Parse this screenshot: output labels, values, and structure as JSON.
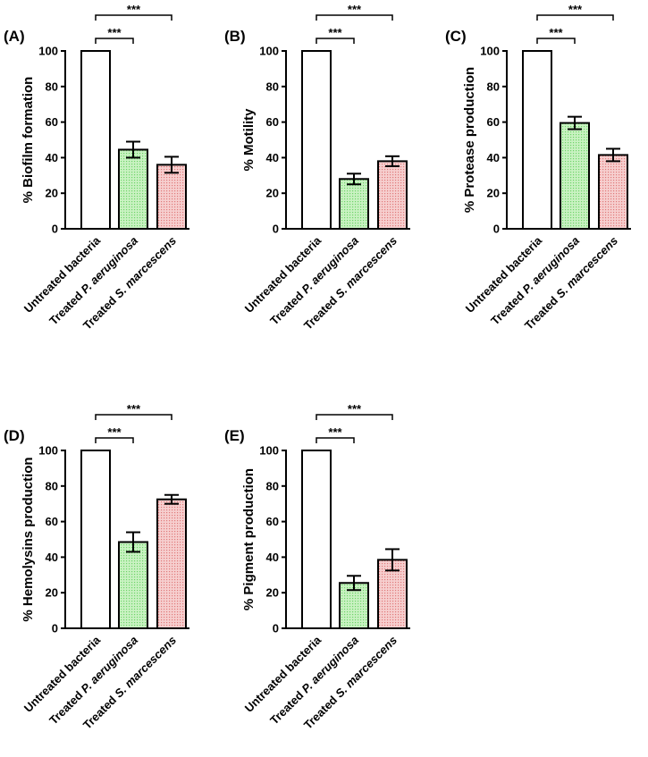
{
  "chart_data": [
    {
      "type": "bar",
      "panel_label": "(A)",
      "ylabel": "% Biofilm formation",
      "ylim": [
        0,
        100
      ],
      "yticks": [
        "0",
        "20",
        "40",
        "60",
        "80",
        "100"
      ],
      "categories": [
        {
          "plain": "Untreated bacteria",
          "prefix": "",
          "italic": ""
        },
        {
          "plain": "Treated P. aeruginosa",
          "prefix": "Treated ",
          "italic": "P. aeruginosa"
        },
        {
          "plain": "Treated S. marcescens",
          "prefix": "Treated ",
          "italic": "S. marcescens"
        }
      ],
      "values": [
        100,
        44.5,
        36
      ],
      "errors": [
        0,
        4.5,
        4.5
      ],
      "significance": [
        {
          "from": 0,
          "to": 1,
          "label": "***"
        },
        {
          "from": 0,
          "to": 2,
          "label": "***"
        }
      ]
    },
    {
      "type": "bar",
      "panel_label": "(B)",
      "ylabel": "% Motility",
      "ylim": [
        0,
        100
      ],
      "yticks": [
        "0",
        "20",
        "40",
        "60",
        "80",
        "100"
      ],
      "categories": [
        {
          "plain": "Untreated bacteria",
          "prefix": "",
          "italic": ""
        },
        {
          "plain": "Treated P. aeruginosa",
          "prefix": "Treated ",
          "italic": "P. aeruginosa"
        },
        {
          "plain": "Treated S. marcescens",
          "prefix": "Treated ",
          "italic": "S. marcescens"
        }
      ],
      "values": [
        100,
        28,
        38
      ],
      "errors": [
        0,
        3,
        2.8
      ],
      "significance": [
        {
          "from": 0,
          "to": 1,
          "label": "***"
        },
        {
          "from": 0,
          "to": 2,
          "label": "***"
        }
      ]
    },
    {
      "type": "bar",
      "panel_label": "(C)",
      "ylabel": "% Protease production",
      "ylim": [
        0,
        100
      ],
      "yticks": [
        "0",
        "20",
        "40",
        "60",
        "80",
        "100"
      ],
      "categories": [
        {
          "plain": "Untreated bacteria",
          "prefix": "",
          "italic": ""
        },
        {
          "plain": "Treated P. aeruginosa",
          "prefix": "Treated ",
          "italic": "P. aeruginosa"
        },
        {
          "plain": "Treated S. marcescens",
          "prefix": "Treated ",
          "italic": "S. marcescens"
        }
      ],
      "values": [
        100,
        59.5,
        41.5
      ],
      "errors": [
        0,
        3.5,
        3.5
      ],
      "significance": [
        {
          "from": 0,
          "to": 1,
          "label": "***"
        },
        {
          "from": 0,
          "to": 2,
          "label": "***"
        }
      ]
    },
    {
      "type": "bar",
      "panel_label": "(D)",
      "ylabel": "% Hemolysins production",
      "ylim": [
        0,
        100
      ],
      "yticks": [
        "0",
        "20",
        "40",
        "60",
        "80",
        "100"
      ],
      "categories": [
        {
          "plain": "Untreated bacteria",
          "prefix": "",
          "italic": ""
        },
        {
          "plain": "Treated P. aeruginosa",
          "prefix": "Treated ",
          "italic": "P. aeruginosa"
        },
        {
          "plain": "Treated S. marcescens",
          "prefix": "Treated ",
          "italic": "S. marcescens"
        }
      ],
      "values": [
        100,
        48.5,
        72.5
      ],
      "errors": [
        0,
        5.5,
        2.5
      ],
      "significance": [
        {
          "from": 0,
          "to": 1,
          "label": "***"
        },
        {
          "from": 0,
          "to": 2,
          "label": "***"
        }
      ]
    },
    {
      "type": "bar",
      "panel_label": "(E)",
      "ylabel": "% Pigment production",
      "ylim": [
        0,
        100
      ],
      "yticks": [
        "0",
        "20",
        "40",
        "60",
        "80",
        "100"
      ],
      "categories": [
        {
          "plain": "Untreated bacteria",
          "prefix": "",
          "italic": ""
        },
        {
          "plain": "Treated P. aeruginosa",
          "prefix": "Treated ",
          "italic": "P. aeruginosa"
        },
        {
          "plain": "Treated S. marcescens",
          "prefix": "Treated ",
          "italic": "S. marcescens"
        }
      ],
      "values": [
        100,
        25.5,
        38.5
      ],
      "errors": [
        0,
        4,
        6
      ],
      "significance": [
        {
          "from": 0,
          "to": 1,
          "label": "***"
        },
        {
          "from": 0,
          "to": 2,
          "label": "***"
        }
      ]
    }
  ],
  "colors": {
    "untreated_fill": "#ffffff",
    "pa_fill": "#c9f2c2",
    "pa_dot": "#6fd36a",
    "sm_fill": "#f6cfcf",
    "sm_dot": "#e07a7a",
    "stroke": "#000000"
  }
}
